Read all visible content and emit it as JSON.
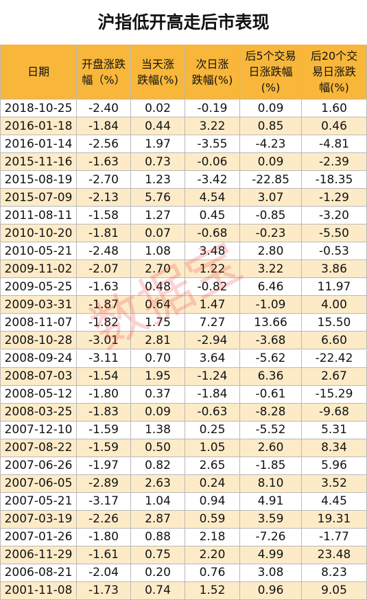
{
  "header": {
    "title": "沪指低开高走后市表现"
  },
  "watermark": "数据宝",
  "table": {
    "columns": [
      "日期",
      "开盘涨跌\n幅（%）",
      "当天涨\n跌幅(%)",
      "次日涨\n跌幅(%)",
      "后5个交易\n日涨跌幅\n(%)",
      "后20个交\n易日涨跌\n幅(%)"
    ],
    "rows": [
      [
        "2018-10-25",
        "-2.40",
        "0.02",
        "-0.19",
        "0.09",
        "1.60"
      ],
      [
        "2016-01-18",
        "-1.84",
        "0.44",
        "3.22",
        "0.85",
        "0.46"
      ],
      [
        "2016-01-14",
        "-2.56",
        "1.97",
        "-3.55",
        "-4.23",
        "-4.81"
      ],
      [
        "2015-11-16",
        "-1.63",
        "0.73",
        "-0.06",
        "0.09",
        "-2.39"
      ],
      [
        "2015-08-19",
        "-2.70",
        "1.23",
        "-3.42",
        "-22.85",
        "-18.35"
      ],
      [
        "2015-07-09",
        "-2.13",
        "5.76",
        "4.54",
        "3.07",
        "-1.29"
      ],
      [
        "2011-08-11",
        "-1.58",
        "1.27",
        "0.45",
        "-0.85",
        "-3.20"
      ],
      [
        "2010-10-20",
        "-1.81",
        "0.07",
        "-0.68",
        "-0.23",
        "-5.50"
      ],
      [
        "2010-05-21",
        "-2.48",
        "1.08",
        "3.48",
        "2.80",
        "-0.53"
      ],
      [
        "2009-11-02",
        "-2.07",
        "2.70",
        "1.22",
        "3.22",
        "3.86"
      ],
      [
        "2009-05-25",
        "-1.63",
        "0.48",
        "-0.82",
        "6.46",
        "11.97"
      ],
      [
        "2009-03-31",
        "-1.87",
        "0.64",
        "1.47",
        "-1.09",
        "4.00"
      ],
      [
        "2008-11-07",
        "-1.82",
        "1.75",
        "7.27",
        "13.66",
        "15.50"
      ],
      [
        "2008-10-28",
        "-3.01",
        "2.81",
        "-2.94",
        "-3.68",
        "6.60"
      ],
      [
        "2008-09-24",
        "-3.11",
        "0.70",
        "3.64",
        "-5.62",
        "-22.42"
      ],
      [
        "2008-07-03",
        "-1.54",
        "1.95",
        "-1.24",
        "6.36",
        "2.67"
      ],
      [
        "2008-05-12",
        "-1.80",
        "0.37",
        "-1.84",
        "-0.61",
        "-15.29"
      ],
      [
        "2008-03-25",
        "-1.83",
        "0.09",
        "-0.63",
        "-8.28",
        "-9.68"
      ],
      [
        "2007-12-10",
        "-1.59",
        "1.38",
        "0.25",
        "-5.52",
        "5.31"
      ],
      [
        "2007-08-22",
        "-1.59",
        "0.50",
        "1.05",
        "2.60",
        "8.34"
      ],
      [
        "2007-06-26",
        "-1.97",
        "0.82",
        "2.65",
        "-1.85",
        "5.96"
      ],
      [
        "2007-06-05",
        "-2.89",
        "2.63",
        "0.24",
        "8.10",
        "3.52"
      ],
      [
        "2007-05-21",
        "-3.17",
        "1.04",
        "0.94",
        "4.91",
        "4.45"
      ],
      [
        "2007-03-19",
        "-2.26",
        "2.87",
        "0.59",
        "3.59",
        "19.31"
      ],
      [
        "2007-01-26",
        "-1.80",
        "0.88",
        "2.18",
        "-7.26",
        "-1.77"
      ],
      [
        "2006-11-29",
        "-1.61",
        "0.75",
        "2.20",
        "4.99",
        "23.48"
      ],
      [
        "2006-08-21",
        "-2.04",
        "0.20",
        "0.76",
        "3.08",
        "8.23"
      ],
      [
        "2001-11-08",
        "-1.73",
        "0.74",
        "1.52",
        "0.96",
        "9.05"
      ]
    ]
  }
}
